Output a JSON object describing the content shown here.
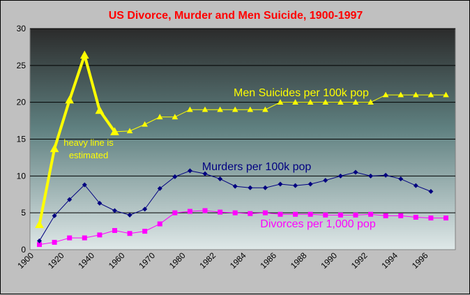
{
  "chart_data": {
    "type": "line",
    "title": "US Divorce, Murder and Men Suicide, 1900-1997",
    "x_labels": [
      "1900",
      "1920",
      "1940",
      "1960",
      "1970",
      "1980",
      "1982",
      "1984",
      "1986",
      "1988",
      "1990",
      "1992",
      "1994",
      "1996"
    ],
    "ylim": [
      0,
      30
    ],
    "y_ticks": [
      0,
      5,
      10,
      15,
      20,
      25,
      30
    ],
    "grid": true,
    "series": [
      {
        "name": "Men Suicides per 100k pop",
        "color": "#ffff00",
        "marker": "triangle",
        "values": [
          3.4,
          13.7,
          20.3,
          26.4,
          18.9,
          16.0,
          16.1,
          17.0,
          18.0,
          18.0,
          19.0,
          19.0,
          19.0,
          19.0,
          19.0,
          19.0,
          20.0,
          20.0,
          20.0,
          20.0,
          20.0,
          20.0,
          20.0,
          21.0,
          21.0,
          21.0,
          21.0,
          21.0
        ],
        "thick_segment_points": 6
      },
      {
        "name": "Murders per 100k pop",
        "color": "#000080",
        "marker": "diamond",
        "values": [
          1.2,
          4.6,
          6.8,
          8.8,
          6.3,
          5.3,
          4.7,
          5.5,
          8.3,
          9.9,
          10.7,
          10.3,
          9.6,
          8.6,
          8.4,
          8.4,
          8.9,
          8.7,
          8.9,
          9.4,
          10.0,
          10.5,
          10.0,
          10.1,
          9.6,
          8.7,
          7.9
        ]
      },
      {
        "name": "Divorces per 1,000 pop",
        "color": "#ff00ff",
        "marker": "square",
        "values": [
          0.7,
          1.0,
          1.6,
          1.6,
          2.0,
          2.6,
          2.2,
          2.5,
          3.5,
          5.0,
          5.2,
          5.3,
          5.1,
          5.0,
          4.9,
          5.0,
          4.8,
          4.8,
          4.8,
          4.7,
          4.7,
          4.7,
          4.8,
          4.6,
          4.6,
          4.4,
          4.3,
          4.3
        ]
      }
    ],
    "annotations": {
      "suicide_label": "Men Suicides per 100k pop",
      "murder_label": "Murders per 100k pop",
      "divorce_label": "Divorces per 1,000 pop",
      "note_line1": "heavy line is",
      "note_line2": "estimated"
    }
  }
}
